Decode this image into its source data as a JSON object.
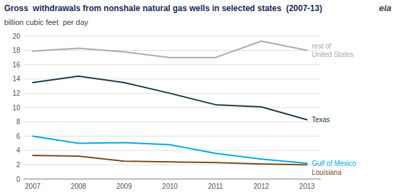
{
  "chart_data": {
    "type": "line",
    "title": "Gross  withdrawals from nonshale natural gas wells in selected states  (2007-13)",
    "subtitle": "billion cubic feet  per day",
    "annotations": [
      "eia"
    ],
    "x": [
      2007,
      2008,
      2009,
      2010,
      2011,
      2012,
      2013
    ],
    "xlim": [
      2006.8,
      2013.3
    ],
    "xticks": [
      2007,
      2008,
      2009,
      2010,
      2011,
      2012,
      2013
    ],
    "ylim": [
      0,
      20
    ],
    "yticks": [
      0,
      2,
      4,
      6,
      8,
      10,
      12,
      14,
      16,
      18,
      20
    ],
    "grid": true,
    "series": [
      {
        "name": "rest of\nUnited States",
        "color": "#aaaaaa",
        "values": [
          17.9,
          18.3,
          17.8,
          17.0,
          17.0,
          19.3,
          18.0
        ]
      },
      {
        "name": "Texas",
        "color": "#1a3a4a",
        "values": [
          13.5,
          14.4,
          13.5,
          12.0,
          10.4,
          10.1,
          8.3
        ]
      },
      {
        "name": "Gulf of Mexico",
        "color": "#00aadd",
        "values": [
          6.0,
          5.0,
          5.1,
          4.8,
          3.6,
          2.8,
          2.2
        ]
      },
      {
        "name": "Louisiana",
        "color": "#7a4a1a",
        "values": [
          3.3,
          3.2,
          2.5,
          2.4,
          2.3,
          2.1,
          2.0
        ]
      }
    ]
  }
}
